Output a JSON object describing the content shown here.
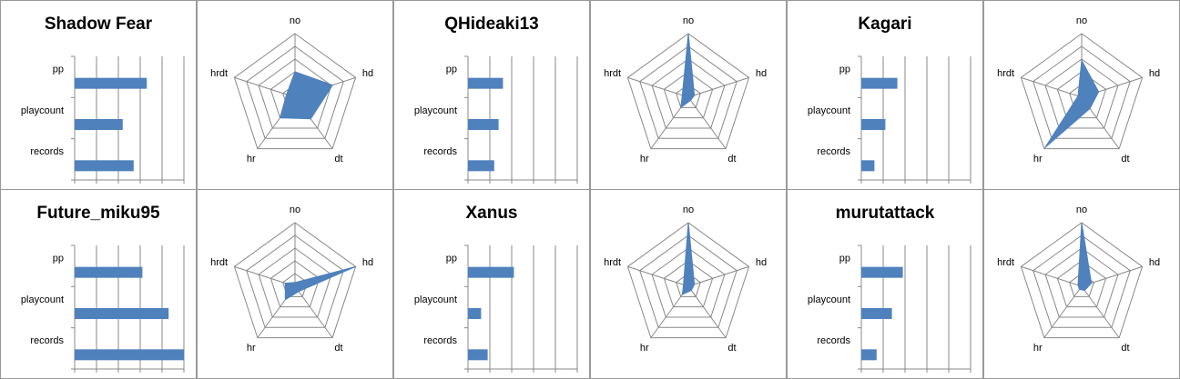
{
  "chart_data": [
    {
      "type": "bar",
      "title": "Shadow Fear",
      "categories": [
        "pp",
        "playcount",
        "records"
      ],
      "values": [
        3.3,
        2.2,
        2.7
      ],
      "xlim": [
        0,
        5
      ],
      "xticks": [
        0,
        1,
        2,
        3,
        4,
        5
      ],
      "color": "#4f81bd"
    },
    {
      "type": "radar",
      "categories": [
        "no",
        "hd",
        "dt",
        "hr",
        "hrdt"
      ],
      "values": [
        2.0,
        3.1,
        2.1,
        2.0,
        0.7
      ],
      "rlim": [
        0,
        5
      ],
      "rticks": [
        0,
        1,
        2,
        3,
        4,
        5
      ],
      "color": "#4f81bd"
    },
    {
      "type": "bar",
      "title": "QHideaki13",
      "categories": [
        "pp",
        "playcount",
        "records"
      ],
      "values": [
        1.6,
        1.4,
        1.2
      ],
      "xlim": [
        0,
        5
      ],
      "xticks": [
        0,
        1,
        2,
        3,
        4,
        5
      ],
      "color": "#4f81bd"
    },
    {
      "type": "radar",
      "categories": [
        "no",
        "hd",
        "dt",
        "hr",
        "hrdt"
      ],
      "values": [
        5.0,
        0.5,
        0.3,
        1.0,
        0.5
      ],
      "rlim": [
        0,
        5
      ],
      "rticks": [
        0,
        1,
        2,
        3,
        4,
        5
      ],
      "color": "#4f81bd"
    },
    {
      "type": "bar",
      "title": "Kagari",
      "categories": [
        "pp",
        "playcount",
        "records"
      ],
      "values": [
        1.65,
        1.1,
        0.6
      ],
      "xlim": [
        0,
        5
      ],
      "xticks": [
        0,
        1,
        2,
        3,
        4,
        5
      ],
      "color": "#4f81bd"
    },
    {
      "type": "radar",
      "categories": [
        "no",
        "hd",
        "dt",
        "hr",
        "hrdt"
      ],
      "values": [
        2.9,
        1.4,
        1.1,
        4.9,
        0.3
      ],
      "rlim": [
        0,
        5
      ],
      "rticks": [
        0,
        1,
        2,
        3,
        4,
        5
      ],
      "color": "#4f81bd"
    },
    {
      "type": "bar",
      "title": "Future_miku95",
      "categories": [
        "pp",
        "playcount",
        "records"
      ],
      "values": [
        3.1,
        4.3,
        5.0
      ],
      "xlim": [
        0,
        5
      ],
      "xticks": [
        0,
        1,
        2,
        3,
        4,
        5
      ],
      "color": "#4f81bd"
    },
    {
      "type": "radar",
      "categories": [
        "no",
        "hd",
        "dt",
        "hr",
        "hrdt"
      ],
      "values": [
        0.3,
        5.0,
        0.5,
        1.3,
        0.8
      ],
      "rlim": [
        0,
        5
      ],
      "rticks": [
        0,
        1,
        2,
        3,
        4,
        5
      ],
      "color": "#4f81bd"
    },
    {
      "type": "bar",
      "title": "Xanus",
      "categories": [
        "pp",
        "playcount",
        "records"
      ],
      "values": [
        2.1,
        0.6,
        0.9
      ],
      "xlim": [
        0,
        5
      ],
      "xticks": [
        0,
        1,
        2,
        3,
        4,
        5
      ],
      "color": "#4f81bd"
    },
    {
      "type": "radar",
      "categories": [
        "no",
        "hd",
        "dt",
        "hr",
        "hrdt"
      ],
      "values": [
        5.0,
        0.5,
        0.4,
        0.8,
        0.4
      ],
      "rlim": [
        0,
        5
      ],
      "rticks": [
        0,
        1,
        2,
        3,
        4,
        5
      ],
      "color": "#4f81bd"
    },
    {
      "type": "bar",
      "title": "murutattack",
      "categories": [
        "pp",
        "playcount",
        "records"
      ],
      "values": [
        1.9,
        1.4,
        0.7
      ],
      "xlim": [
        0,
        5
      ],
      "xticks": [
        0,
        1,
        2,
        3,
        4,
        5
      ],
      "color": "#4f81bd"
    },
    {
      "type": "radar",
      "categories": [
        "no",
        "hd",
        "dt",
        "hr",
        "hrdt"
      ],
      "values": [
        5.0,
        0.8,
        0.4,
        0.3,
        0.3
      ],
      "rlim": [
        0,
        5
      ],
      "rticks": [
        0,
        1,
        2,
        3,
        4,
        5
      ],
      "color": "#4f81bd"
    }
  ]
}
